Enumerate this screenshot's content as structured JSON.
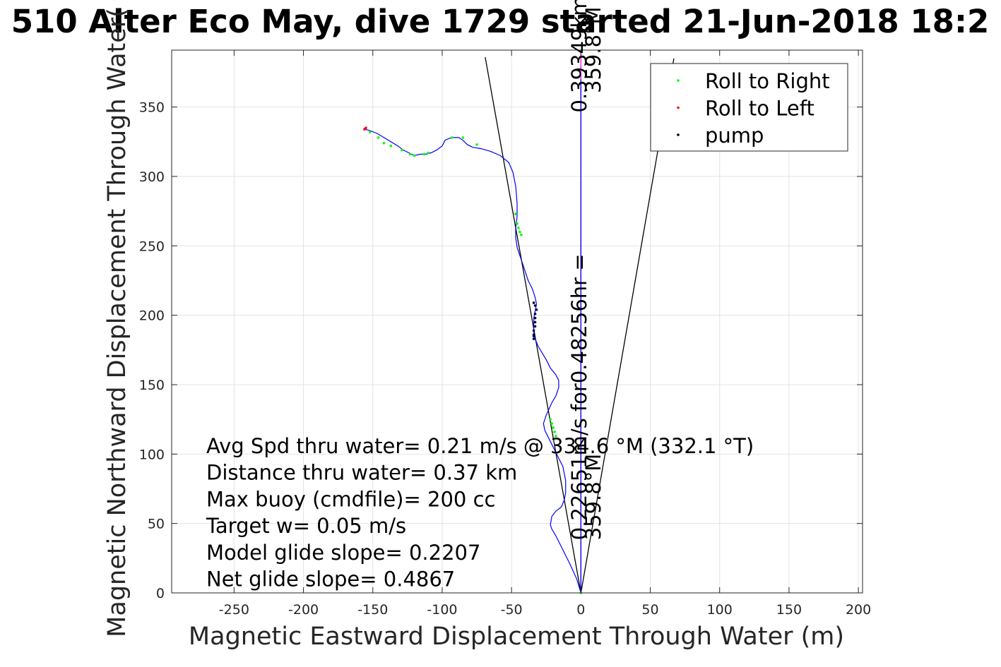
{
  "chart_data": {
    "type": "line",
    "title": "510 Alter Eco May, dive 1729 started 21-Jun-2018 18:2",
    "xlabel": "Magnetic Eastward Displacement Through Water (m)",
    "ylabel": "Magnetic Northward Displacement Through Water(",
    "xlim": [
      -295,
      203
    ],
    "ylim": [
      0,
      391
    ],
    "xticks": [
      -250,
      -200,
      -150,
      -100,
      -50,
      0,
      50,
      100,
      150,
      200
    ],
    "yticks": [
      0,
      50,
      100,
      150,
      200,
      250,
      300,
      350
    ],
    "grid": true,
    "legend_position": "top-right",
    "legend": [
      {
        "label": "Roll to Right",
        "color": "#00ff00"
      },
      {
        "label": "Roll to Left",
        "color": "#ff0000"
      },
      {
        "label": "pump",
        "color": "#000000"
      }
    ],
    "track": {
      "color": "#0000ff",
      "x": [
        0,
        -3,
        -8,
        -13,
        -18,
        -21,
        -22,
        -21,
        -18,
        -14,
        -12,
        -11,
        -11,
        -13,
        -18,
        -23,
        -26,
        -27,
        -25,
        -21,
        -18,
        -16,
        -16,
        -18,
        -22,
        -25,
        -28,
        -31,
        -33,
        -34,
        -34,
        -34,
        -33,
        -32,
        -33,
        -35,
        -38,
        -42,
        -46,
        -47,
        -47,
        -46,
        -46,
        -47,
        -49,
        -52,
        -58,
        -65,
        -72,
        -78,
        -82,
        -85,
        -88,
        -91,
        -93,
        -96,
        -98,
        -100,
        -104,
        -108,
        -112,
        -116,
        -120,
        -124,
        -128,
        -132,
        -137,
        -142,
        -147,
        -152,
        -156
      ],
      "y": [
        0,
        10,
        21,
        31,
        41,
        46,
        49,
        55,
        59,
        62,
        67,
        72,
        81,
        91,
        101,
        111,
        117,
        122,
        128,
        137,
        142,
        148,
        153,
        157,
        162,
        168,
        173,
        178,
        183,
        188,
        193,
        198,
        203,
        208,
        213,
        219,
        225,
        237,
        249,
        256,
        263,
        271,
        281,
        293,
        303,
        310,
        315,
        318,
        320,
        321,
        323,
        326,
        328,
        328,
        328,
        327,
        326,
        322,
        319,
        317,
        316,
        316,
        315,
        317,
        319,
        322,
        325,
        328,
        331,
        333,
        334
      ]
    },
    "roll_right_points": {
      "x": [
        0,
        -18,
        -19,
        -20,
        -21,
        -22,
        -47,
        -46,
        -45,
        -44,
        -43,
        -75,
        -85,
        -93,
        -110,
        -113,
        -120,
        -123,
        -129,
        -137,
        -142,
        -146,
        -152
      ],
      "y": [
        0,
        113,
        116,
        119,
        122,
        125,
        273,
        266,
        263,
        260,
        258,
        323,
        328,
        328,
        317,
        316,
        315,
        316,
        319,
        322,
        324,
        328,
        332
      ]
    },
    "roll_left_points": {
      "x": [
        -156,
        -155
      ],
      "y": [
        334,
        335
      ]
    },
    "pump_points": {
      "x": [
        -34,
        -34,
        -34,
        -33,
        -33,
        -33,
        -33,
        -32,
        -33,
        -34,
        -34
      ],
      "y": [
        183,
        186,
        189,
        192,
        195,
        198,
        201,
        204,
        207,
        209,
        185
      ]
    },
    "bearing_lines": [
      {
        "color": "#000000",
        "from": [
          0,
          0
        ],
        "to": [
          -69,
          386
        ]
      },
      {
        "color": "#000000",
        "from": [
          0,
          0
        ],
        "to": [
          67,
          385
        ]
      },
      {
        "color": "#ff00ff",
        "from": [
          0,
          0
        ],
        "to": [
          0,
          391
        ]
      },
      {
        "color": "#0000ff",
        "from": [
          0,
          0
        ],
        "to": [
          0,
          370
        ]
      }
    ],
    "rotated_annotations": [
      {
        "text": "0.39349km",
        "x": 4,
        "y": 346
      },
      {
        "text": "359.8°M",
        "x": 14,
        "y": 360
      },
      {
        "text": "0.22651m/s for0.48256hr =",
        "x": 4,
        "y": 38
      },
      {
        "text": "359.8°M",
        "x": 14,
        "y": 38
      }
    ],
    "stats": [
      "Avg Spd thru water=  0.21 m/s @ 334.6 °M (332.1 °T)",
      "Distance thru water=  0.37 km",
      "Max buoy (cmdfile)= 200 cc",
      "Target w= 0.05 m/s",
      "Model glide slope= 0.2207",
      "Net glide slope= 0.4867"
    ]
  }
}
